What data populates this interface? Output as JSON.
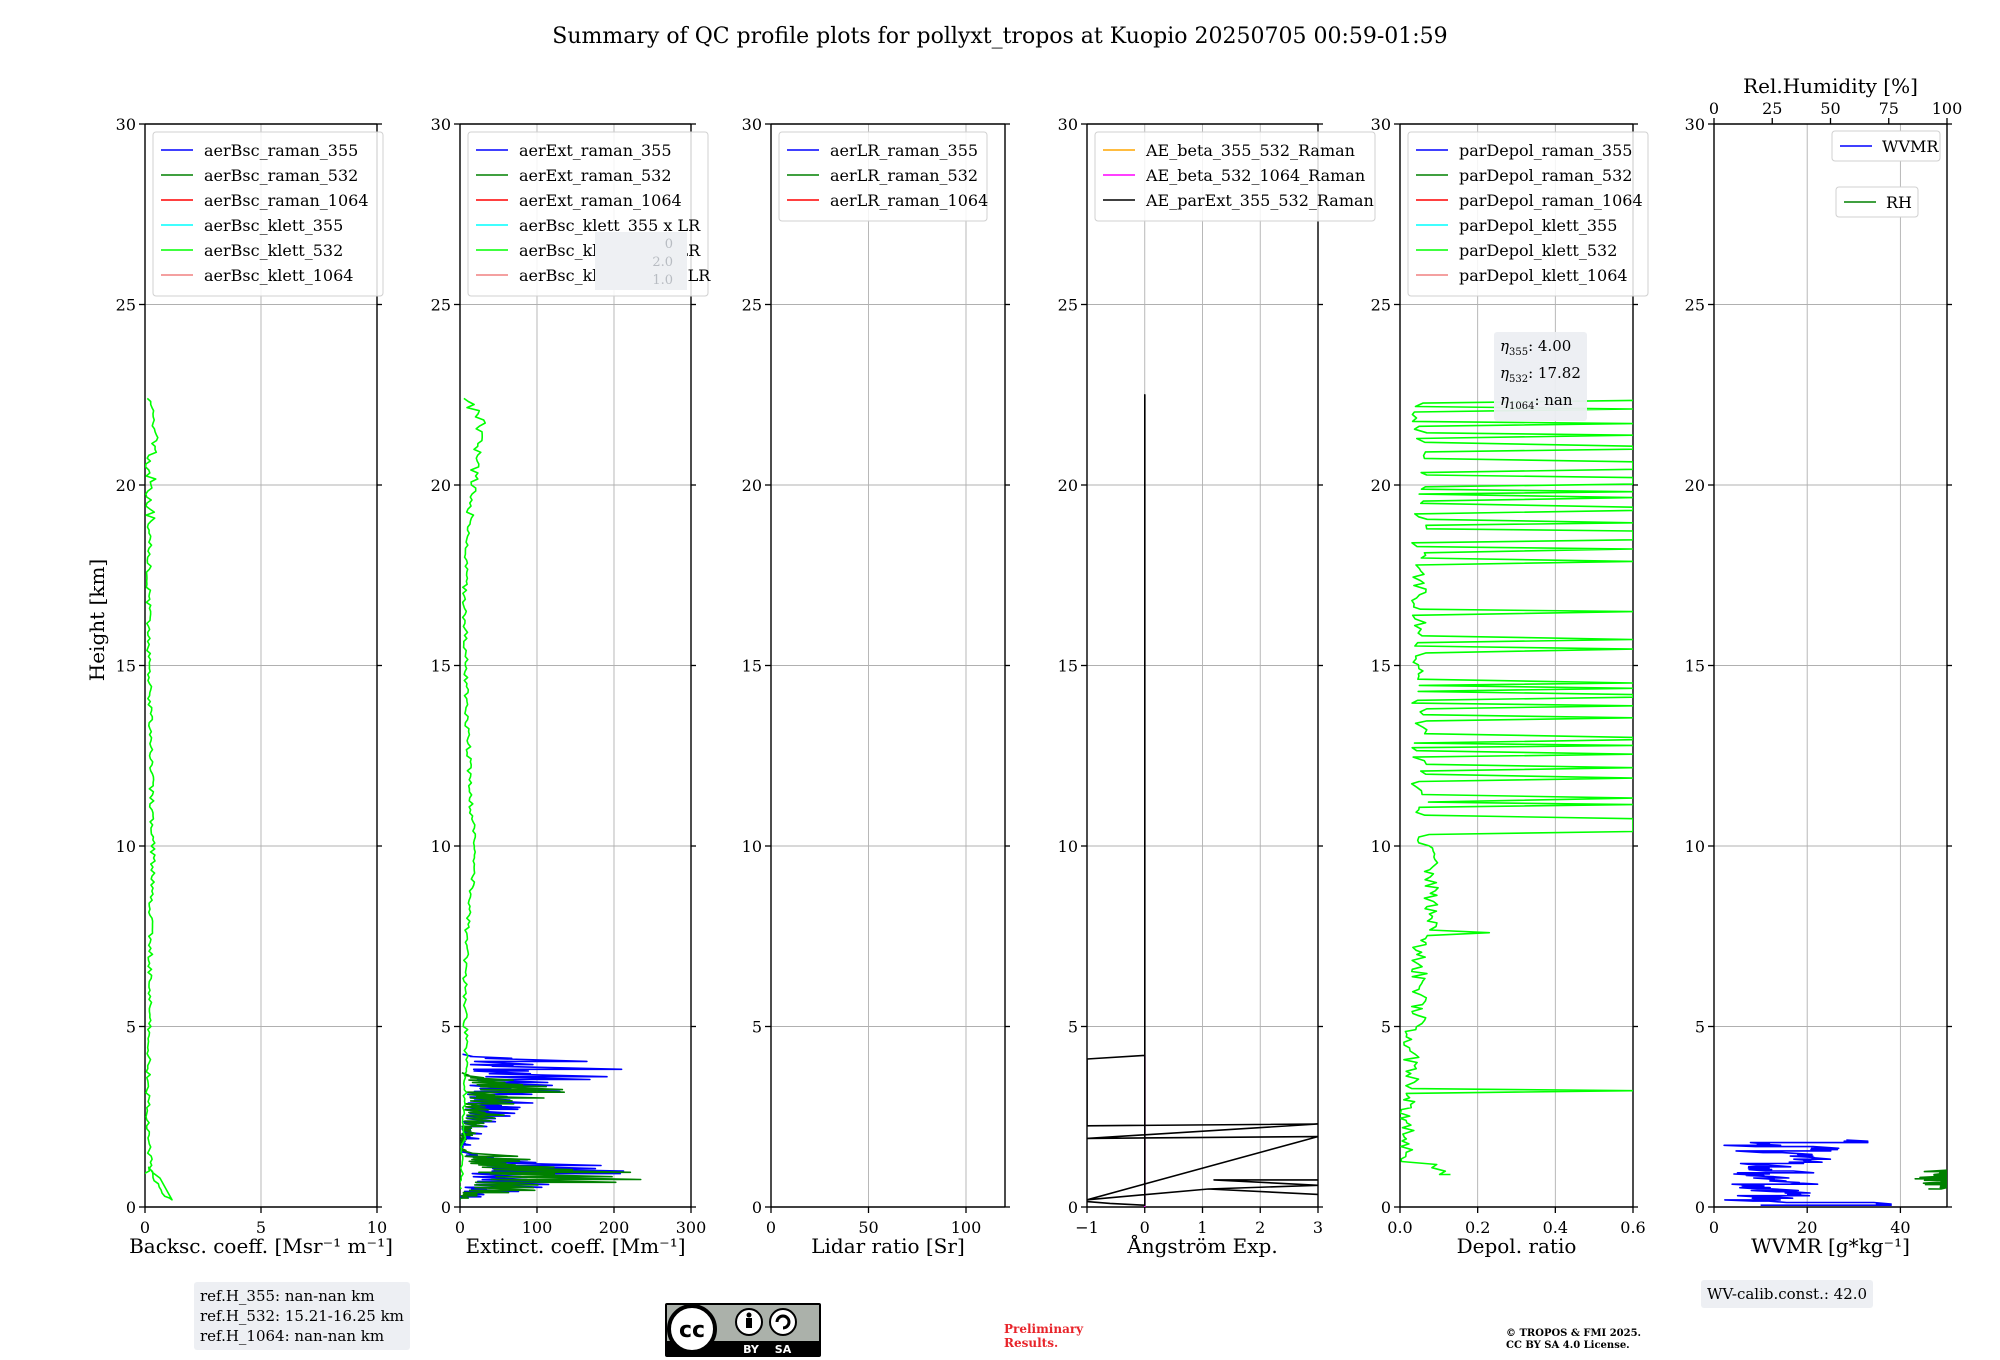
{
  "figure_title": "Summary of QC profile plots for pollyxt_tropos at Kuopio 20250705 00:59-01:59",
  "ylabel": "Height [km]",
  "annotations": {
    "ref_h_355": "ref.H_355: nan-nan km",
    "ref_h_532": "ref.H_532: 15.21-16.25 km",
    "ref_h_1064": "ref.H_1064: nan-nan km",
    "eta_355_label": "η",
    "eta_355_sub": "355",
    "eta_355_value": ": 4.00",
    "eta_532_label": "η",
    "eta_532_sub": "532",
    "eta_532_value": ": 17.82",
    "eta_1064_label": "η",
    "eta_1064_sub": "1064",
    "eta_1064_value": ": nan",
    "wv_calib": "WV-calib.const.: 42.0",
    "preliminary_line1": "Preliminary",
    "preliminary_line2": "Results.",
    "copyright_line1": "© TROPOS & FMI 2025.",
    "copyright_line2": "CC BY SA 4.0 License.",
    "cc_logo_text": "cc",
    "cc_by": "BY",
    "cc_sa": "SA"
  },
  "colors": {
    "blue": "#0000ff",
    "green": "#008000",
    "red": "#ff0000",
    "cyan": "#00ffff",
    "lime": "#00ff00",
    "salmon": "#f08080",
    "orange": "#ffa500",
    "magenta": "#ff00ff",
    "black": "#000000",
    "grid": "#b0b0b0"
  },
  "chart_data": [
    {
      "type": "line",
      "xlabel": "Backsc. coeff. [Msr⁻¹ m⁻¹]",
      "xlim": [
        0,
        10
      ],
      "xticks": [
        "0",
        "5",
        "10"
      ],
      "ylim": [
        0,
        30
      ],
      "yticks": [
        "0",
        "5",
        "10",
        "15",
        "20",
        "25",
        "30"
      ],
      "grid": true,
      "legend_position": "top",
      "legend": [
        "aerBsc_raman_355",
        "aerBsc_raman_532",
        "aerBsc_raman_1064",
        "aerBsc_klett_355",
        "aerBsc_klett_532",
        "aerBsc_klett_1064"
      ],
      "legend_colors": [
        "blue",
        "green",
        "red",
        "cyan",
        "lime",
        "salmon"
      ],
      "series": [
        {
          "name": "aerBsc_klett_532",
          "color": "lime",
          "style": "wiggle",
          "points": [
            [
              0,
              0.9
            ],
            [
              0.2,
              1.1
            ],
            [
              0.6,
              0.8
            ],
            [
              1.2,
              0.2
            ],
            [
              0.8,
              0.3
            ],
            [
              0.3,
              0.9
            ],
            [
              0.1,
              2
            ],
            [
              0.15,
              4
            ],
            [
              0.2,
              6
            ],
            [
              0.25,
              8
            ],
            [
              0.35,
              9.5
            ],
            [
              0.3,
              11
            ],
            [
              0.2,
              14
            ],
            [
              0.15,
              17
            ],
            [
              0.2,
              19
            ],
            [
              0.25,
              20.5
            ],
            [
              0.4,
              21.8
            ],
            [
              0.1,
              22.4
            ]
          ]
        }
      ]
    },
    {
      "type": "line",
      "xlabel": "Extinct. coeff. [Mm⁻¹]",
      "xlim": [
        0,
        300
      ],
      "xticks": [
        "0",
        "100",
        "200",
        "300"
      ],
      "ylim": [
        0,
        30
      ],
      "yticks": [
        "0",
        "5",
        "10",
        "15",
        "20",
        "25",
        "30"
      ],
      "grid": true,
      "legend_position": "top",
      "legend": [
        "aerExt_raman_355",
        "aerExt_raman_532",
        "aerExt_raman_1064",
        "aerBsc_klett_355 x LR",
        "aerBsc_klett_532 x LR",
        "aerBsc_klett_1064 x LR"
      ],
      "legend_colors": [
        "blue",
        "green",
        "red",
        "cyan",
        "lime",
        "salmon"
      ],
      "hidden_box_text": [
        "0",
        "2.0",
        "1.0"
      ],
      "series": [
        {
          "name": "aerExt_raman_355",
          "color": "blue",
          "style": "spiky",
          "points": [
            [
              0,
              0.2
            ],
            [
              300,
              1.1
            ],
            [
              0,
              1.5
            ],
            [
              20,
              1.8
            ],
            [
              60,
              2.4
            ],
            [
              130,
              2.9
            ],
            [
              170,
              3.2
            ],
            [
              220,
              3.8
            ],
            [
              170,
              4.1
            ],
            [
              0,
              4.2
            ]
          ]
        },
        {
          "name": "aerExt_raman_532",
          "color": "green",
          "style": "spiky",
          "points": [
            [
              0,
              0.2
            ],
            [
              300,
              0.9
            ],
            [
              0,
              1.6
            ],
            [
              30,
              2.2
            ],
            [
              80,
              2.8
            ],
            [
              160,
              3.2
            ],
            [
              90,
              3.5
            ],
            [
              0,
              3.7
            ]
          ]
        },
        {
          "name": "aerBsc_klett_532 x LR",
          "color": "lime",
          "style": "wiggle",
          "points": [
            [
              0,
              0.5
            ],
            [
              5,
              2
            ],
            [
              8,
              4
            ],
            [
              6,
              6
            ],
            [
              10,
              8
            ],
            [
              20,
              9.5
            ],
            [
              15,
              11
            ],
            [
              8,
              14
            ],
            [
              6,
              17
            ],
            [
              12,
              19
            ],
            [
              18,
              20.5
            ],
            [
              30,
              21.8
            ],
            [
              5,
              22.4
            ]
          ]
        }
      ]
    },
    {
      "type": "line",
      "xlabel": "Lidar ratio [Sr]",
      "xlim": [
        0,
        120
      ],
      "xticks": [
        "0",
        "50",
        "100"
      ],
      "ylim": [
        0,
        30
      ],
      "yticks": [
        "0",
        "5",
        "10",
        "15",
        "20",
        "25",
        "30"
      ],
      "grid": true,
      "legend_position": "top",
      "legend": [
        "aerLR_raman_355",
        "aerLR_raman_532",
        "aerLR_raman_1064"
      ],
      "legend_colors": [
        "blue",
        "green",
        "red"
      ],
      "series": []
    },
    {
      "type": "line",
      "xlabel": "Ångström Exp.",
      "xlim": [
        -1,
        3
      ],
      "xticks": [
        "−1",
        "0",
        "1",
        "2",
        "3"
      ],
      "ylim": [
        0,
        30
      ],
      "yticks": [
        "0",
        "5",
        "10",
        "15",
        "20",
        "25",
        "30"
      ],
      "grid": true,
      "legend_position": "top",
      "legend": [
        "AE_beta_355_532_Raman",
        "AE_beta_532_1064_Raman",
        "AE_parExt_355_532_Raman"
      ],
      "legend_colors": [
        "orange",
        "magenta",
        "black"
      ],
      "series": [
        {
          "name": "AE_beta_532_1064_Raman",
          "color": "magenta",
          "style": "plain",
          "points": [
            [
              0,
              0
            ],
            [
              0,
              4.2
            ]
          ]
        },
        {
          "name": "AE_parExt_355_532_Raman",
          "color": "black",
          "style": "plain",
          "points": [
            [
              -1,
              0.15
            ],
            [
              -0.6,
              0.1
            ],
            [
              0,
              0.05
            ],
            [
              0,
              22.5
            ],
            [
              0,
              4.2
            ],
            [
              -1,
              4.1
            ],
            [
              -1,
              2.25
            ],
            [
              3,
              2.3
            ],
            [
              -1,
              1.9
            ],
            [
              3,
              1.95
            ],
            [
              -1,
              0.2
            ],
            [
              1.1,
              0.5
            ],
            [
              3,
              0.35
            ],
            [
              1.1,
              0.5
            ],
            [
              3,
              0.6
            ],
            [
              1.2,
              0.75
            ],
            [
              3,
              0.75
            ]
          ]
        }
      ]
    },
    {
      "type": "line",
      "xlabel": "Depol. ratio",
      "xlim": [
        0,
        0.6
      ],
      "xticks": [
        "0.0",
        "0.2",
        "0.4",
        "0.6"
      ],
      "ylim": [
        0,
        30
      ],
      "yticks": [
        "0",
        "5",
        "10",
        "15",
        "20",
        "25",
        "30"
      ],
      "grid": true,
      "legend_position": "top",
      "legend": [
        "parDepol_raman_355",
        "parDepol_raman_532",
        "parDepol_raman_1064",
        "parDepol_klett_355",
        "parDepol_klett_532",
        "parDepol_klett_1064"
      ],
      "legend_colors": [
        "blue",
        "green",
        "red",
        "cyan",
        "lime",
        "salmon"
      ],
      "series": [
        {
          "name": "parDepol_klett_532",
          "color": "lime",
          "style": "depol",
          "points": [
            [
              0.13,
              0.5
            ],
            [
              0.02,
              1.2
            ],
            [
              0.02,
              3
            ],
            [
              0.6,
              3.2
            ],
            [
              0.03,
              3.4
            ],
            [
              0.04,
              5
            ],
            [
              0.06,
              7
            ],
            [
              0.23,
              7.6
            ],
            [
              0.08,
              8
            ],
            [
              0.1,
              10
            ],
            [
              0.6,
              10.6
            ],
            [
              0.6,
              11.5
            ],
            [
              0.6,
              22
            ],
            [
              0.05,
              22.4
            ]
          ]
        }
      ]
    },
    {
      "type": "line",
      "xlabel": "WVMR [g*kg⁻¹]",
      "xlim": [
        0,
        50
      ],
      "xticks": [
        "0",
        "20",
        "40"
      ],
      "x2label": "Rel.Humidity [%]",
      "x2lim": [
        0,
        100
      ],
      "x2ticks": [
        "0",
        "25",
        "50",
        "75",
        "100"
      ],
      "ylim": [
        0,
        30
      ],
      "yticks": [
        "0",
        "5",
        "10",
        "15",
        "20",
        "25",
        "30"
      ],
      "grid": true,
      "legend_position": "top-right",
      "legend": [
        "WVMR",
        "RH"
      ],
      "legend_colors": [
        "blue",
        "green"
      ],
      "series": [
        {
          "name": "WVMR",
          "color": "blue",
          "style": "wvmr",
          "points": [
            [
              10,
              0.05
            ],
            [
              38,
              0.1
            ],
            [
              12,
              0.4
            ],
            [
              16,
              0.8
            ],
            [
              30,
              1.2
            ],
            [
              35,
              1.45
            ],
            [
              33,
              1.8
            ],
            [
              20,
              1.6
            ],
            [
              18,
              1.0
            ],
            [
              10,
              0.6
            ]
          ]
        },
        {
          "name": "RH",
          "color": "green",
          "style": "rh",
          "points": [
            [
              90,
              0.5
            ],
            [
              100,
              0.55
            ],
            [
              95,
              0.7
            ],
            [
              100,
              0.8
            ],
            [
              90,
              0.9
            ],
            [
              100,
              0.95
            ]
          ]
        }
      ]
    }
  ]
}
